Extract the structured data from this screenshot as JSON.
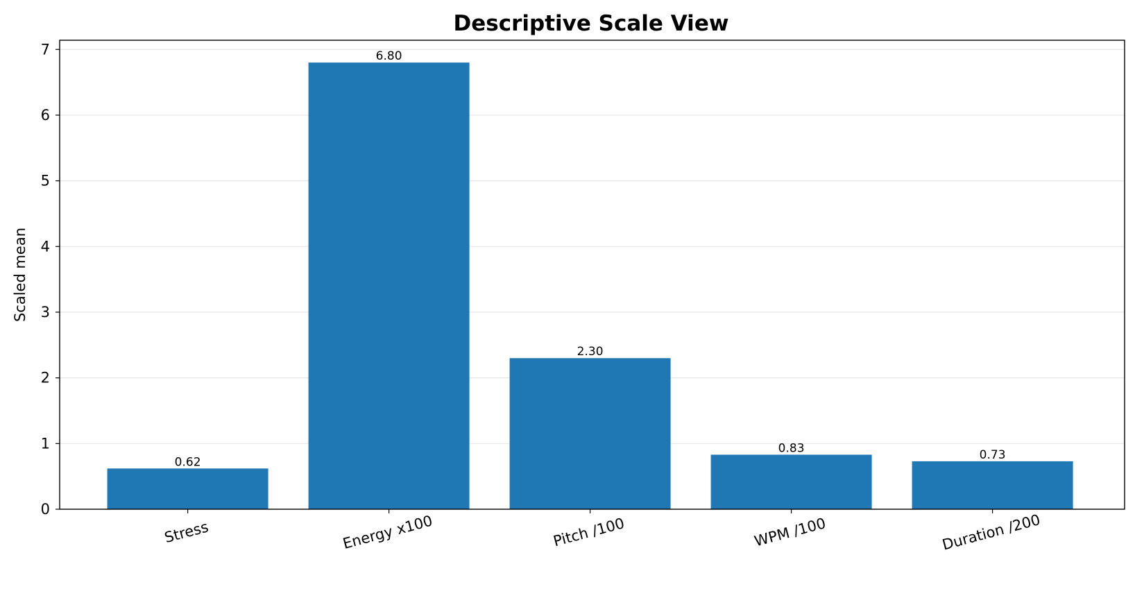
{
  "chart_data": {
    "type": "bar",
    "title": "Descriptive Scale View",
    "xlabel": "",
    "ylabel": "Scaled mean",
    "categories": [
      "Stress",
      "Energy x100",
      "Pitch /100",
      "WPM /100",
      "Duration /200"
    ],
    "values": [
      0.62,
      6.8,
      2.3,
      0.83,
      0.73
    ],
    "value_labels": [
      "0.62",
      "6.80",
      "2.30",
      "0.83",
      "0.73"
    ],
    "y_ticks": [
      0,
      1,
      2,
      3,
      4,
      5,
      6,
      7
    ],
    "ylim": [
      0,
      7.14
    ],
    "grid": "y-major",
    "legend": "none",
    "bar_color": "#1f77b4"
  }
}
